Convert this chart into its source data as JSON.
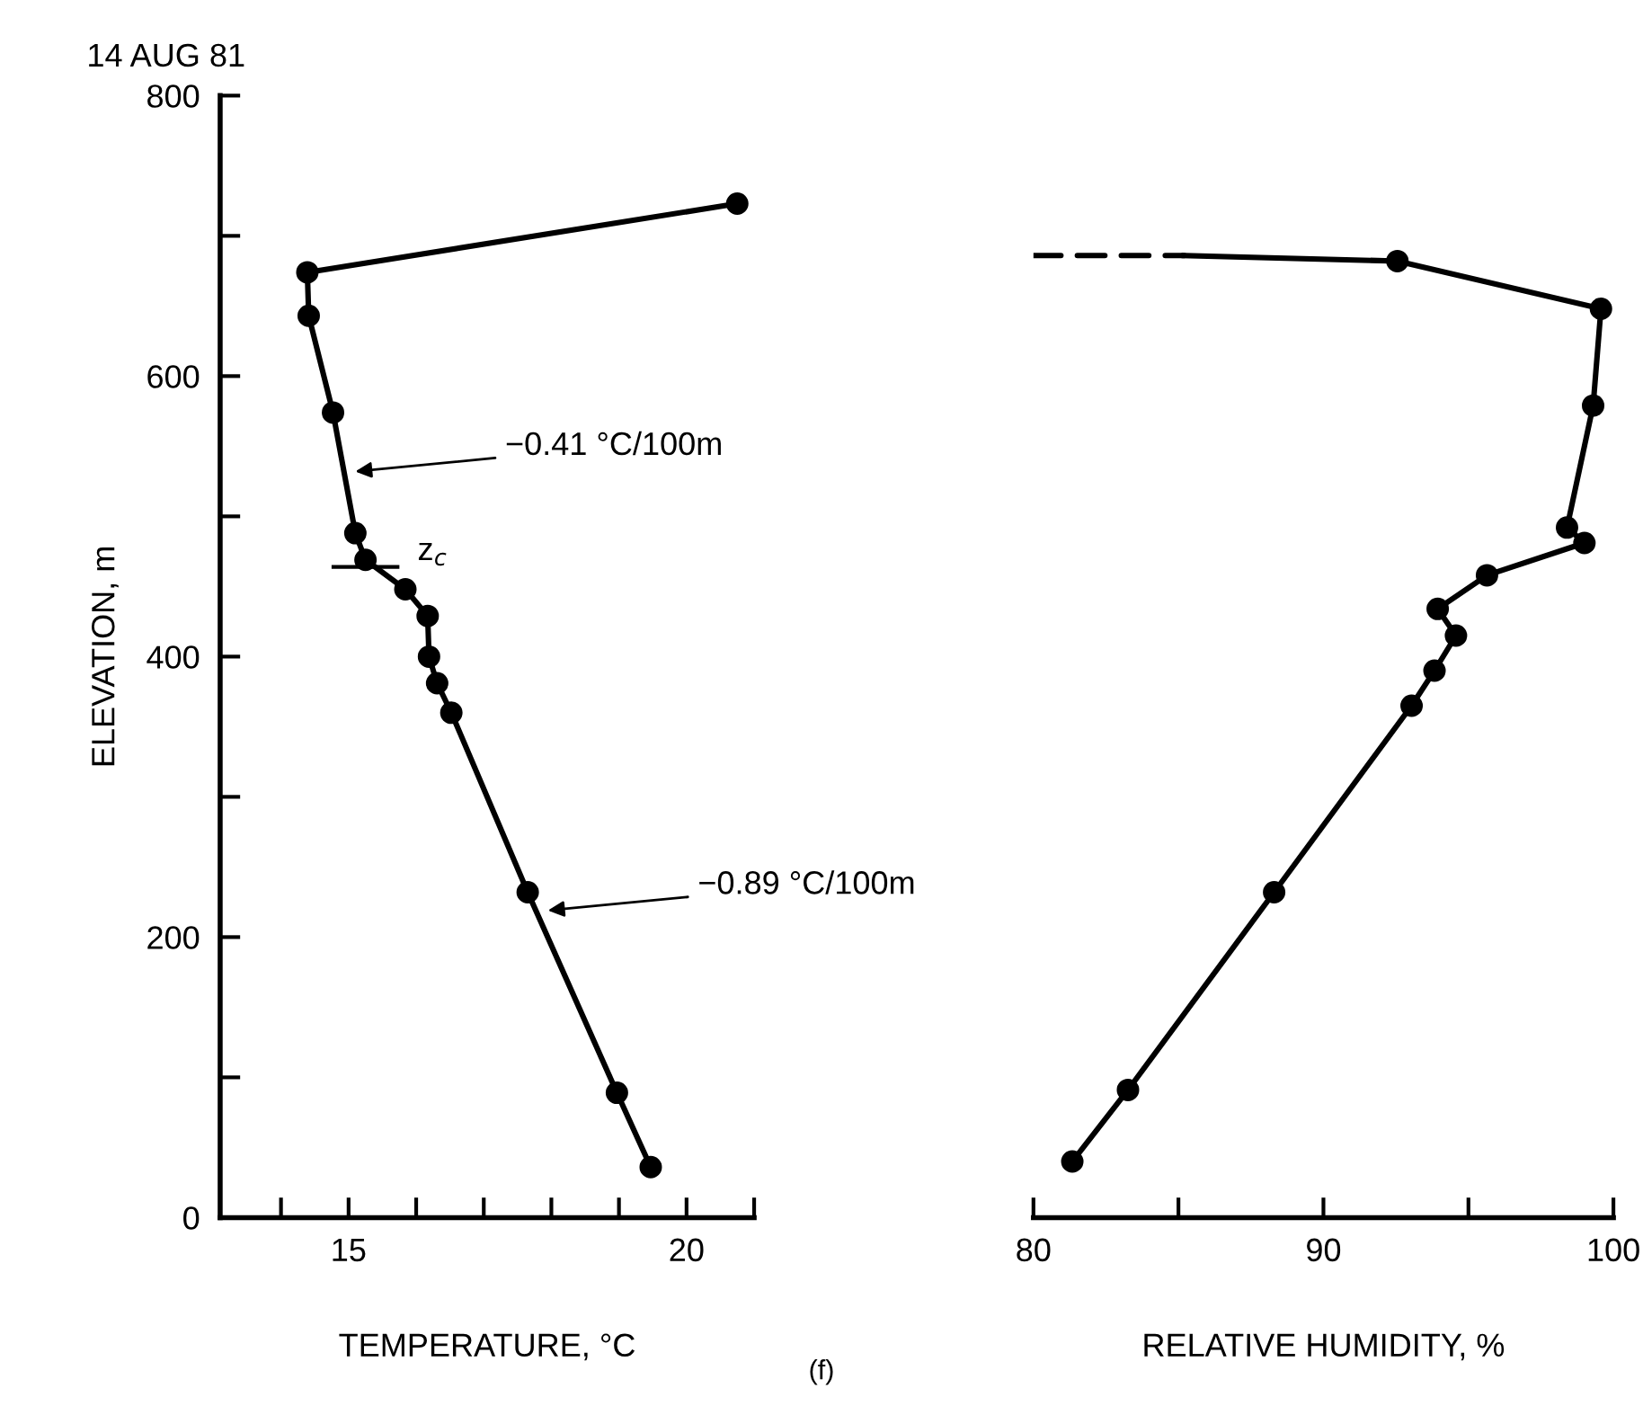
{
  "chart_data": [
    {
      "type": "line",
      "title": "14 AUG 81",
      "xlabel": "TEMPERATURE, °C",
      "ylabel": "ELEVATION, m",
      "xlim": [
        13.1,
        21
      ],
      "xticks": [
        {
          "value": 14,
          "label": null
        },
        15,
        {
          "value": 16,
          "label": null
        },
        {
          "value": 17,
          "label": null
        },
        {
          "value": 18,
          "label": null
        },
        {
          "value": 19,
          "label": null
        },
        20,
        {
          "value": 21,
          "label": null
        }
      ],
      "ylim": [
        0,
        800
      ],
      "yticks": [
        0,
        {
          "value": 100,
          "label": null
        },
        200,
        {
          "value": 300,
          "label": null
        },
        400,
        {
          "value": 500,
          "label": null
        },
        600,
        {
          "value": 700,
          "label": null
        },
        800
      ],
      "grid": false,
      "legend": false,
      "marker": "circle",
      "line_style": "solid",
      "series": [
        {
          "color": "#000000",
          "x": [
            19.47,
            18.97,
            17.65,
            16.52,
            16.31,
            16.19,
            16.17,
            15.84,
            15.25,
            15.1,
            14.77,
            14.41,
            14.39,
            20.75
          ],
          "values": [
            36,
            89,
            232,
            360,
            381,
            400,
            429,
            448,
            469,
            488,
            574,
            643,
            674,
            723
          ]
        }
      ],
      "annotations": [
        {
          "text": "−0.41 °C/100m",
          "x": 15.1,
          "y": 532
        },
        {
          "text": "−0.89 °C/100m",
          "x": 17.95,
          "y": 219
        },
        {
          "text": "z$_{c}$",
          "x": 15.25,
          "y": 464
        }
      ]
    },
    {
      "type": "line",
      "xlabel": "RELATIVE HUMIDITY, %",
      "xlim": [
        80,
        100
      ],
      "xticks": [
        80,
        {
          "value": 85,
          "label": null
        },
        90,
        {
          "value": 95,
          "label": null
        },
        100
      ],
      "ylim": [
        0,
        800
      ],
      "tick_labels": "x",
      "grid": false,
      "legend": false,
      "marker": "circle",
      "line_style": "solid",
      "series": [
        {
          "color": "#000000",
          "x": [
            81.34,
            83.26,
            88.3,
            93.04,
            93.83,
            94.57,
            93.94,
            95.64,
            99.0,
            98.4,
            99.3,
            99.57,
            92.55
          ],
          "values": [
            40,
            91,
            232,
            365,
            390,
            415,
            434,
            458,
            481,
            492,
            579,
            648,
            682
          ]
        },
        {
          "color": "#000000",
          "marker": "none",
          "x": [
            85.2,
            92.55
          ],
          "values": [
            686,
            682
          ]
        },
        {
          "color": "#000000",
          "marker": "none",
          "line_style": "dashed",
          "x": [
            80,
            85.2
          ],
          "values": [
            686,
            686
          ]
        }
      ],
      "annotations": [
        "(f)"
      ]
    }
  ]
}
